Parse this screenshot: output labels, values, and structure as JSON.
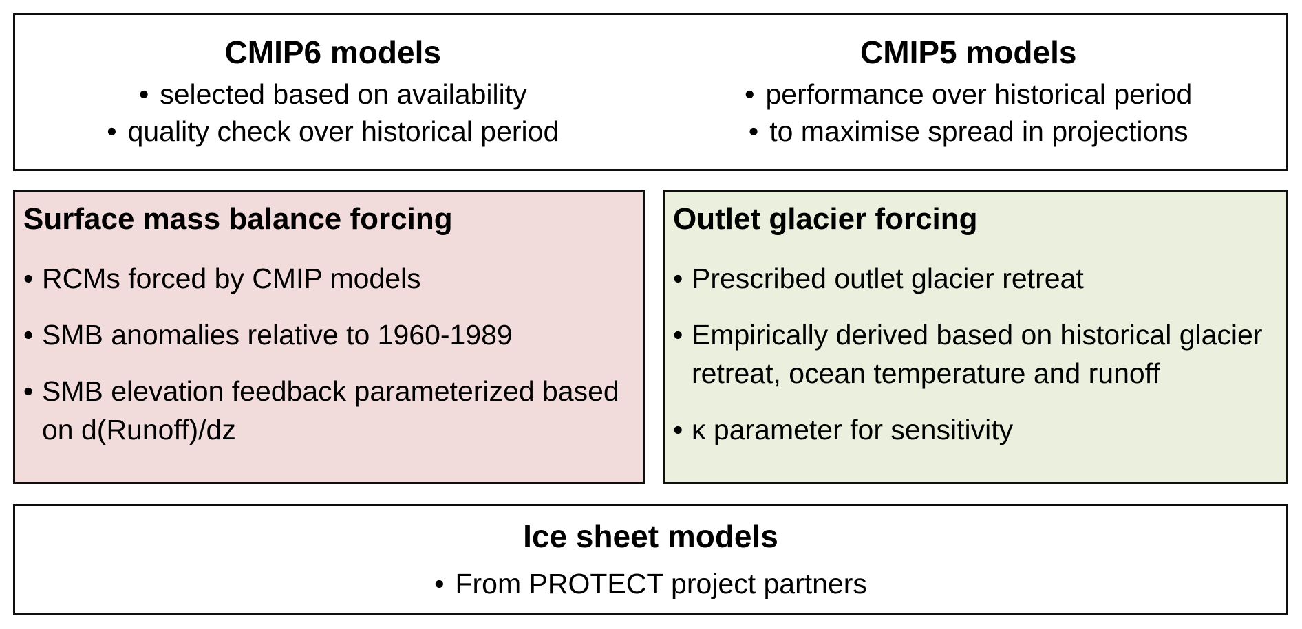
{
  "bullet_glyph": "•",
  "colors": {
    "smb_box_bg": "#f2dcdb",
    "glacier_box_bg": "#ebf0de",
    "border": "#0f0f0f",
    "page_bg": "#ffffff",
    "text": "#000000"
  },
  "cmip_box": {
    "cmip6": {
      "title": "CMIP6 models",
      "bullets": [
        "selected based on availability",
        "quality check over historical period"
      ]
    },
    "cmip5": {
      "title": "CMIP5 models",
      "bullets": [
        "performance over historical period",
        "to maximise spread in projections"
      ]
    }
  },
  "smb_box": {
    "title": "Surface mass balance forcing",
    "bullets": [
      "RCMs forced by CMIP models",
      "SMB anomalies relative to 1960-1989",
      "SMB elevation feedback parameterized based on d(Runoff)/dz"
    ]
  },
  "glacier_box": {
    "title": "Outlet glacier forcing",
    "bullets": [
      "Prescribed outlet glacier retreat",
      "Empirically derived based on historical glacier retreat, ocean temperature and runoff",
      "κ parameter for sensitivity"
    ]
  },
  "ice_sheet_box": {
    "title": "Ice sheet models",
    "bullets": [
      "From PROTECT project partners"
    ]
  }
}
